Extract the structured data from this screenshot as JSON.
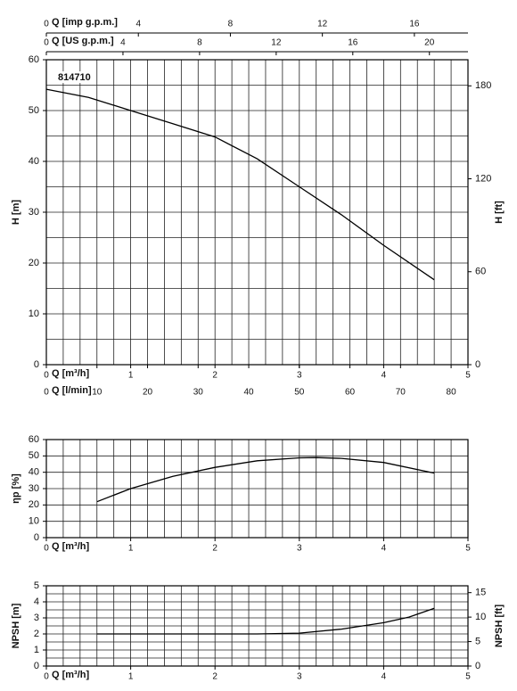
{
  "chart_data": [
    {
      "type": "line",
      "xlabel": "Q [m³/h]",
      "xlim": [
        0,
        5
      ],
      "xticks": [
        0,
        1,
        2,
        3,
        4,
        5
      ],
      "xgrid": 0.2,
      "ylabel": "H [m]",
      "ylim": [
        0,
        60
      ],
      "yticks": [
        0,
        10,
        20,
        30,
        40,
        50,
        60
      ],
      "ygrid": 5,
      "y2label": "H [ft]",
      "y2lim": [
        0,
        196.85
      ],
      "y2ticks": [
        0,
        60,
        120,
        180
      ],
      "x_axes": [
        {
          "label": "Q [l/min]",
          "lim": [
            0,
            83.333
          ],
          "ticks": [
            0,
            10,
            20,
            30,
            40,
            50,
            60,
            70,
            80
          ],
          "position": "bottom"
        },
        {
          "label": "Q [US g.p.m.]",
          "lim": [
            0,
            22.013
          ],
          "ticks": [
            0,
            4,
            8,
            12,
            16,
            20
          ],
          "position": "top"
        },
        {
          "label": "Q [imp g.p.m.]",
          "lim": [
            0,
            18.33
          ],
          "ticks": [
            0,
            4,
            8,
            12,
            16
          ],
          "position": "top"
        }
      ],
      "series": [
        {
          "name": "814710",
          "color": "#000000",
          "x": [
            0,
            0.5,
            1.0,
            1.5,
            2.0,
            2.5,
            3.0,
            3.5,
            4.0,
            4.6
          ],
          "values": [
            54.2,
            52.6,
            50.0,
            47.4,
            44.8,
            40.5,
            35.0,
            29.5,
            23.5,
            16.7
          ]
        }
      ]
    },
    {
      "type": "line",
      "xlabel": "Q [m³/h]",
      "xlim": [
        0,
        5
      ],
      "xticks": [
        0,
        1,
        2,
        3,
        4,
        5
      ],
      "xgrid": 0.2,
      "ylabel": "ηp [%]",
      "ylim": [
        0,
        60
      ],
      "yticks": [
        0,
        10,
        20,
        30,
        40,
        50,
        60
      ],
      "ygrid": 10,
      "series": [
        {
          "color": "#000000",
          "x": [
            0.6,
            1.0,
            1.5,
            2.0,
            2.5,
            3.0,
            3.2,
            3.5,
            4.0,
            4.6
          ],
          "values": [
            22,
            30,
            37.5,
            43,
            47,
            48.8,
            49,
            48.5,
            46,
            39.5
          ]
        }
      ]
    },
    {
      "type": "line",
      "xlabel": "Q [m³/h]",
      "xlim": [
        0,
        5
      ],
      "xticks": [
        0,
        1,
        2,
        3,
        4,
        5
      ],
      "xgrid": 0.2,
      "ylabel": "NPSH [m]",
      "ylim": [
        0,
        5
      ],
      "yticks": [
        0,
        1,
        2,
        3,
        4,
        5
      ],
      "ygrid": 0.5,
      "y2label": "NPSH [ft]",
      "y2lim": [
        0,
        16.4
      ],
      "y2ticks": [
        0,
        5,
        10,
        15
      ],
      "series": [
        {
          "color": "#000000",
          "x": [
            0.6,
            1.5,
            2.5,
            3.0,
            3.5,
            4.0,
            4.3,
            4.6
          ],
          "values": [
            2.0,
            2.0,
            2.0,
            2.05,
            2.3,
            2.7,
            3.05,
            3.6
          ]
        }
      ]
    }
  ]
}
